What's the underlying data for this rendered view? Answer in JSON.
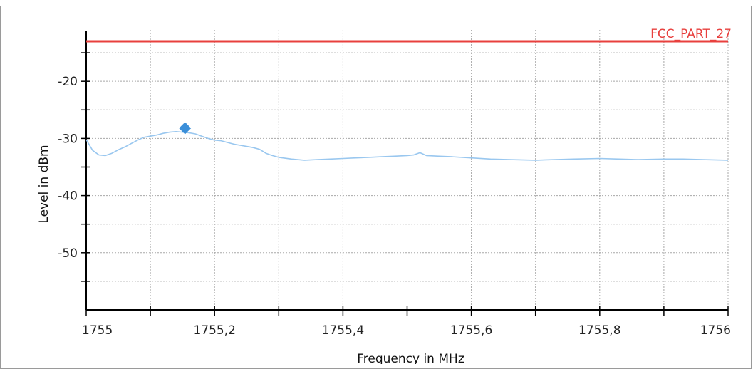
{
  "chart_data": {
    "type": "line",
    "title": "",
    "xlabel": "Frequency in MHz",
    "ylabel": "Level in dBm",
    "xlim": [
      1755,
      1756
    ],
    "ylim": [
      -60,
      -11
    ],
    "x_ticks": [
      1755,
      1755.2,
      1755.4,
      1755.6,
      1755.8,
      1756
    ],
    "x_tick_labels": [
      "1755",
      "1755,2",
      "1755,4",
      "1755,6",
      "1755,8",
      "1756"
    ],
    "x_minor_ticks": [
      1755.1,
      1755.3,
      1755.5,
      1755.7,
      1755.9
    ],
    "y_ticks": [
      -20,
      -30,
      -40,
      -50
    ],
    "y_tick_labels": [
      "-20",
      "-30",
      "-40",
      "-50"
    ],
    "y_minor_ticks": [
      -15,
      -25,
      -35,
      -45,
      -55
    ],
    "grid": true,
    "series": [
      {
        "name": "",
        "color": "#99c7ef",
        "x": [
          1755,
          1755.01,
          1755.02,
          1755.03,
          1755.04,
          1755.05,
          1755.06,
          1755.07,
          1755.08,
          1755.09,
          1755.1,
          1755.11,
          1755.12,
          1755.13,
          1755.14,
          1755.15,
          1755.16,
          1755.17,
          1755.18,
          1755.19,
          1755.2,
          1755.21,
          1755.22,
          1755.23,
          1755.24,
          1755.25,
          1755.26,
          1755.27,
          1755.28,
          1755.29,
          1755.3,
          1755.32,
          1755.34,
          1755.36,
          1755.38,
          1755.4,
          1755.42,
          1755.44,
          1755.46,
          1755.48,
          1755.5,
          1755.51,
          1755.52,
          1755.53,
          1755.55,
          1755.57,
          1755.6,
          1755.63,
          1755.66,
          1755.7,
          1755.73,
          1755.76,
          1755.8,
          1755.83,
          1755.86,
          1755.9,
          1755.93,
          1755.96,
          1756
        ],
        "values": [
          -30.2,
          -32.1,
          -32.9,
          -33.0,
          -32.6,
          -32.0,
          -31.5,
          -30.9,
          -30.3,
          -29.8,
          -29.6,
          -29.4,
          -29.1,
          -28.9,
          -28.8,
          -28.9,
          -29.0,
          -29.2,
          -29.6,
          -30.0,
          -30.3,
          -30.4,
          -30.7,
          -31.0,
          -31.2,
          -31.4,
          -31.6,
          -31.9,
          -32.6,
          -33.0,
          -33.3,
          -33.6,
          -33.8,
          -33.7,
          -33.6,
          -33.5,
          -33.4,
          -33.3,
          -33.2,
          -33.1,
          -33.0,
          -32.9,
          -32.5,
          -33.0,
          -33.1,
          -33.2,
          -33.4,
          -33.6,
          -33.7,
          -33.8,
          -33.7,
          -33.6,
          -33.5,
          -33.6,
          -33.7,
          -33.6,
          -33.6,
          -33.7,
          -33.8
        ]
      }
    ],
    "limit_line": {
      "label": "FCC_PART_27",
      "value": -13,
      "color": "#e8403e"
    },
    "marker": {
      "x": 1755.154,
      "value": -28.2,
      "color": "#3b8fd9"
    }
  }
}
